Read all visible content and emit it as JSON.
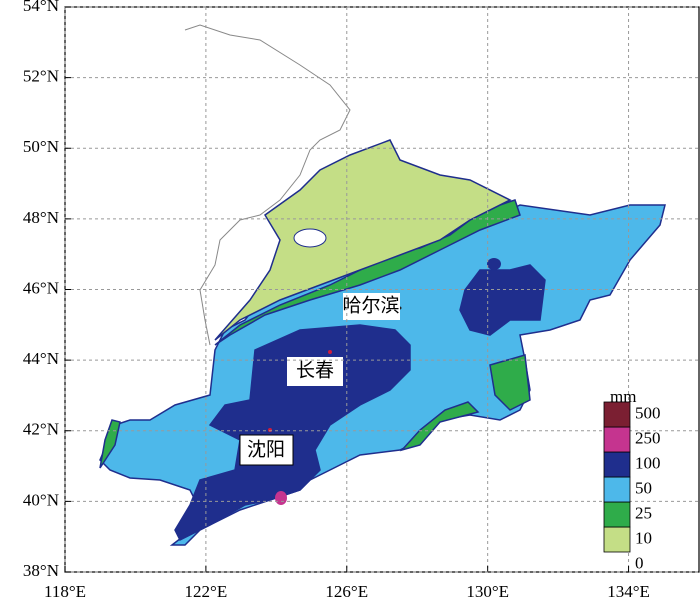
{
  "map": {
    "xlim": [
      118,
      136
    ],
    "ylim": [
      38,
      54
    ],
    "xticks": [
      {
        "value": 118,
        "label": "118°E"
      },
      {
        "value": 122,
        "label": "122°E"
      },
      {
        "value": 126,
        "label": "126°E"
      },
      {
        "value": 130,
        "label": "130°E"
      },
      {
        "value": 134,
        "label": "134°E"
      }
    ],
    "yticks": [
      {
        "value": 38,
        "label": "38°N"
      },
      {
        "value": 40,
        "label": "40°N"
      },
      {
        "value": 42,
        "label": "42°N"
      },
      {
        "value": 44,
        "label": "44°N"
      },
      {
        "value": 46,
        "label": "46°N"
      },
      {
        "value": 48,
        "label": "48°N"
      },
      {
        "value": 50,
        "label": "50°N"
      },
      {
        "value": 52,
        "label": "52°N"
      },
      {
        "value": 54,
        "label": "54°N"
      }
    ],
    "grid": true,
    "cities": [
      "哈尔滨",
      "长春",
      "沈阳"
    ],
    "legend": {
      "unit": "mm",
      "levels": [
        0,
        10,
        25,
        50,
        100,
        250,
        500
      ],
      "colors": [
        "#c4de86",
        "#2fac4a",
        "#4db8ea",
        "#1f2e8d",
        "#c5348f",
        "#7b1f32"
      ]
    }
  }
}
